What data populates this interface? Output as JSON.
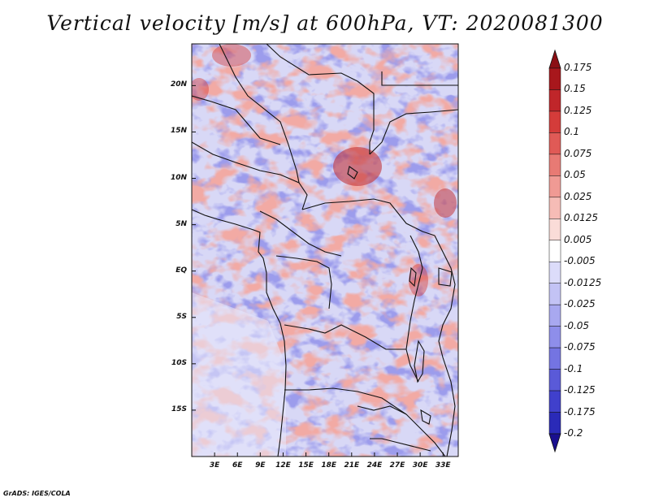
{
  "title": "Vertical velocity [m/s] at 600hPa, VT: 2020081300",
  "credit": "GrADS: IGES/COLA",
  "map": {
    "lat_labels": [
      "20N",
      "15N",
      "10N",
      "5N",
      "EQ",
      "5S",
      "10S",
      "15S"
    ],
    "lat_values": [
      20,
      15,
      10,
      5,
      0,
      -5,
      -10,
      -15
    ],
    "lon_labels": [
      "3E",
      "6E",
      "9E",
      "12E",
      "15E",
      "18E",
      "21E",
      "24E",
      "27E",
      "30E",
      "33E"
    ],
    "lon_values": [
      3,
      6,
      9,
      12,
      15,
      18,
      21,
      24,
      27,
      30,
      33
    ],
    "lon_range": [
      0,
      35
    ],
    "lat_range": [
      -20,
      24.5
    ]
  },
  "colorbar": {
    "levels": [
      "0.175",
      "0.15",
      "0.125",
      "0.1",
      "0.075",
      "0.05",
      "0.025",
      "0.0125",
      "0.005",
      "-0.005",
      "-0.0125",
      "-0.025",
      "-0.05",
      "-0.075",
      "-0.1",
      "-0.125",
      "-0.175",
      "-0.2"
    ],
    "colors": [
      "#8b0f14",
      "#a8171c",
      "#c0262a",
      "#d43c3a",
      "#e05a56",
      "#e87a74",
      "#f09a94",
      "#f6bcb6",
      "#fadcd8",
      "#ffffff",
      "#dcdcfa",
      "#c3c3f5",
      "#a8a8f0",
      "#8e8eea",
      "#7474e2",
      "#5a5ad8",
      "#4040cc",
      "#2a2ab8",
      "#1a0f8f"
    ]
  }
}
